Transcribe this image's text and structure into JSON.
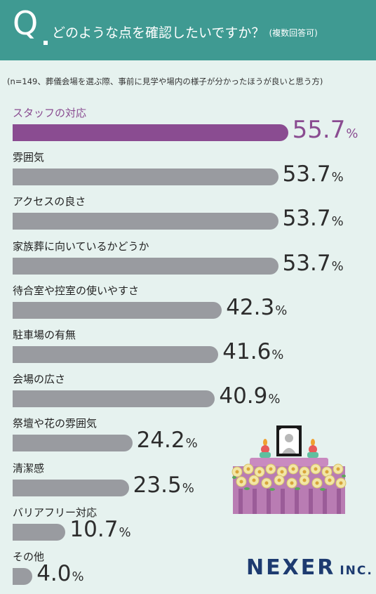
{
  "header": {
    "q_letter": "Q",
    "question": "どのような点を確認したいですか？",
    "note": "(複数回答可)"
  },
  "subtitle": "(n=149、葬儀会場を選ぶ際、事前に見学や場内の様子が分かったほうが良いと思う方)",
  "logo": {
    "main": "NEXER",
    "suffix": "INC."
  },
  "percent_sign": "%",
  "chart_data": {
    "type": "bar",
    "orientation": "horizontal",
    "title": "",
    "xlabel": "",
    "ylabel": "",
    "xlim": [
      0,
      100
    ],
    "unit": "%",
    "highlight_color": "#8a4c91",
    "bar_color": "#999ba0",
    "categories": [
      "スタッフの対応",
      "雰囲気",
      "アクセスの良さ",
      "家族葬に向いているかどうか",
      "待合室や控室の使いやすさ",
      "駐車場の有無",
      "会場の広さ",
      "祭壇や花の雰囲気",
      "清潔感",
      "バリアフリー対応",
      "その他"
    ],
    "values": [
      55.7,
      53.7,
      53.7,
      53.7,
      42.3,
      41.6,
      40.9,
      24.2,
      23.5,
      10.7,
      4.0
    ],
    "value_labels": [
      "55.7",
      "53.7",
      "53.7",
      "53.7",
      "42.3",
      "41.6",
      "40.9",
      "24.2",
      "23.5",
      "10.7",
      "4.0"
    ],
    "highlight_index": 0
  }
}
